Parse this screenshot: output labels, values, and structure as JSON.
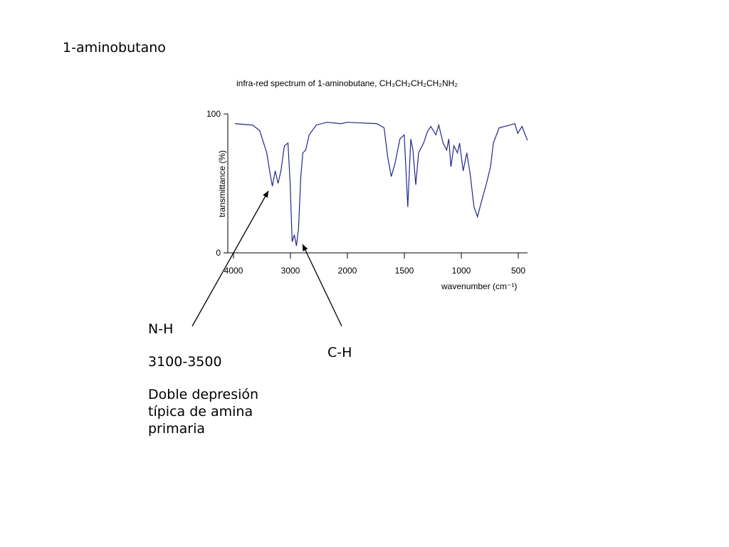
{
  "heading": "1-aminobutano",
  "chart_data": {
    "type": "line",
    "title": "infra-red spectrum of 1-aminobutane,  CH₃CH₂CH₂CH₂NH₂",
    "x_label": "wavenumber (cm⁻¹)",
    "y_label": "transmittance (%)",
    "x": [
      3975,
      3665,
      3540,
      3416,
      3354,
      3317,
      3267,
      3217,
      3168,
      3106,
      3044,
      3006,
      2970,
      2932,
      2895,
      2857,
      2820,
      2783,
      2733,
      2671,
      2547,
      2361,
      2112,
      2000,
      1741,
      1678,
      1646,
      1615,
      1583,
      1539,
      1501,
      1470,
      1444,
      1425,
      1400,
      1375,
      1331,
      1299,
      1268,
      1223,
      1198,
      1160,
      1129,
      1110,
      1091,
      1065,
      1034,
      1015,
      984,
      952,
      921,
      889,
      858,
      826,
      782,
      744,
      719,
      668,
      574,
      530,
      505,
      467,
      420
    ],
    "values": [
      93,
      92,
      88,
      72,
      56,
      48,
      59,
      50,
      59,
      77,
      79,
      51,
      8,
      13,
      5,
      18,
      54,
      72,
      74,
      85,
      92,
      94,
      93,
      94,
      93,
      90,
      69,
      55,
      64,
      82,
      85,
      33,
      82,
      74,
      49,
      72,
      79,
      87,
      91,
      85,
      92,
      79,
      74,
      82,
      62,
      77,
      72,
      79,
      59,
      72,
      56,
      33,
      26,
      36,
      49,
      62,
      79,
      90,
      92,
      93,
      86,
      91,
      81
    ],
    "color": "#26268c",
    "xlim": [
      4000,
      420
    ],
    "xticks": [
      4000,
      3000,
      2000,
      1500,
      1000,
      500
    ],
    "ylim": [
      0,
      100
    ],
    "yticks": [
      0,
      100
    ],
    "annotations": [
      {
        "lines": [
          "N-H",
          "3100-3500",
          "Doble depresión típica de amina primaria"
        ]
      },
      {
        "lines": [
          "C-H"
        ]
      }
    ]
  }
}
